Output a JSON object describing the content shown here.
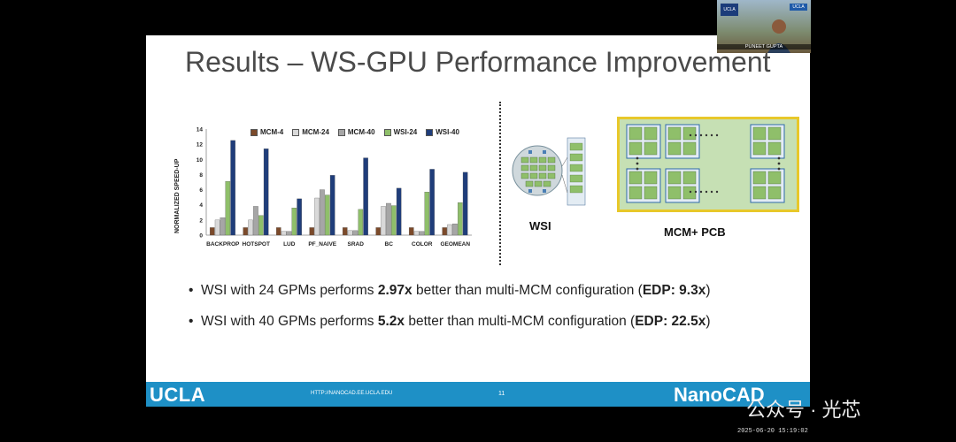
{
  "slide": {
    "title": "Results – WS-GPU Performance Improvement",
    "wsi_label": "WSI",
    "mcm_label": "MCM+ PCB",
    "bullets": [
      {
        "pre": "WSI with 24 GPMs performs ",
        "bold": "2.97x",
        "mid": " better than multi-MCM configuration (",
        "bold2": "EDP: 9.3x",
        "post": ")"
      },
      {
        "pre": "WSI with 40 GPMs performs ",
        "bold": "5.2x",
        "mid": " better than multi-MCM configuration (",
        "bold2": "EDP: 22.5x",
        "post": ")"
      }
    ],
    "footer": {
      "left_logo": "UCLA",
      "url": "HTTP://NANOCAD.EE.UCLA.EDU",
      "page": "11",
      "right_logo": "NanoCAD"
    }
  },
  "video": {
    "speaker_name": "PUNEET GUPTA",
    "badge_left": "UCLA",
    "badge_right": "UCLA"
  },
  "overlay": {
    "watermark": "公众号 · 光芯",
    "timestamp": "2025-06-20 15:19:02"
  },
  "colors": {
    "footer": "#1e90c6",
    "mcm4": "#7b4a2a",
    "mcm24": "#d9d9d9",
    "mcm40": "#a6a6a6",
    "wsi24": "#8fbf6a",
    "wsi40": "#1f3d7a"
  },
  "chart_data": {
    "type": "bar",
    "title": "",
    "xlabel": "",
    "ylabel": "NORMALIZED SPEED-UP",
    "ylim": [
      0,
      14
    ],
    "yticks": [
      0,
      2,
      4,
      6,
      8,
      10,
      12,
      14
    ],
    "grid": false,
    "legend_position": "top",
    "categories": [
      "BACKPROP",
      "HOTSPOT",
      "LUD",
      "PF_NAIVE",
      "SRAD",
      "BC",
      "COLOR",
      "GEOMEAN"
    ],
    "series": [
      {
        "name": "MCM-4",
        "values": [
          1,
          1,
          1,
          1,
          1,
          1,
          1,
          1
        ]
      },
      {
        "name": "MCM-24",
        "values": [
          2.0,
          2.0,
          0.5,
          4.9,
          0.6,
          3.8,
          0.5,
          1.4
        ]
      },
      {
        "name": "MCM-40",
        "values": [
          2.3,
          3.8,
          0.5,
          6.0,
          0.6,
          4.2,
          0.5,
          1.5
        ]
      },
      {
        "name": "WSI-24",
        "values": [
          7.1,
          2.6,
          3.6,
          5.3,
          3.4,
          3.9,
          5.7,
          4.3
        ]
      },
      {
        "name": "WSI-40",
        "values": [
          12.5,
          11.4,
          4.8,
          7.9,
          10.2,
          6.2,
          8.7,
          8.3
        ]
      }
    ]
  }
}
